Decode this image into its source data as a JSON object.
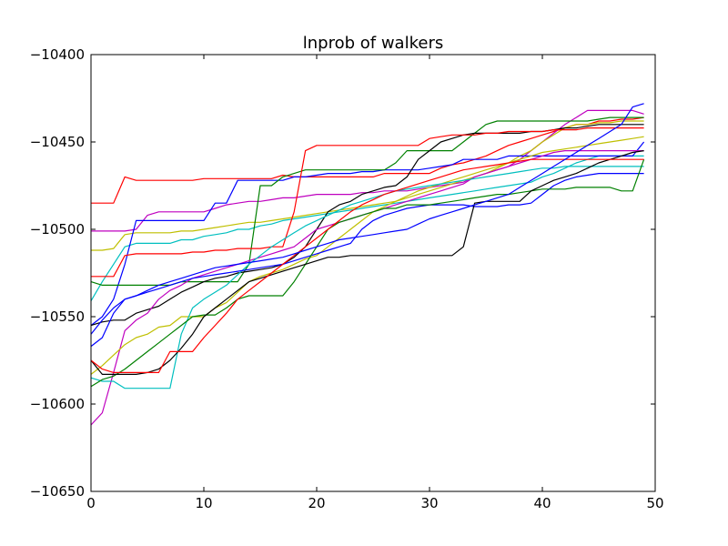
{
  "chart_data": {
    "type": "line",
    "title": "lnprob of walkers",
    "xlabel": "",
    "ylabel": "",
    "xlim": [
      0,
      50
    ],
    "ylim": [
      -10650,
      -10400
    ],
    "xticks": [
      0,
      10,
      20,
      30,
      40,
      50
    ],
    "yticks": [
      -10650,
      -10600,
      -10550,
      -10500,
      -10450,
      -10400
    ],
    "xtick_labels": [
      "0",
      "10",
      "20",
      "30",
      "40",
      "50"
    ],
    "ytick_labels": [
      "−10650",
      "−10600",
      "−10550",
      "−10500",
      "−10450",
      "−10400"
    ],
    "grid": false,
    "x": [
      0,
      1,
      2,
      3,
      4,
      5,
      6,
      7,
      8,
      9,
      10,
      11,
      12,
      13,
      14,
      15,
      16,
      17,
      18,
      19,
      20,
      21,
      22,
      23,
      24,
      25,
      26,
      27,
      28,
      29,
      30,
      31,
      32,
      33,
      34,
      35,
      36,
      37,
      38,
      39,
      40,
      41,
      42,
      43,
      44,
      45,
      46,
      47,
      48,
      49
    ],
    "series": [
      {
        "color": "#ff0000",
        "values": [
          -10485,
          -10485,
          -10485,
          -10470,
          -10472,
          -10472,
          -10472,
          -10472,
          -10472,
          -10472,
          -10471,
          -10471,
          -10471,
          -10471,
          -10471,
          -10471,
          -10471,
          -10469,
          -10470,
          -10470,
          -10470,
          -10470,
          -10470,
          -10470,
          -10470,
          -10470,
          -10468,
          -10468,
          -10468,
          -10468,
          -10468,
          -10465,
          -10463,
          -10462,
          -10460,
          -10458,
          -10455,
          -10452,
          -10450,
          -10448,
          -10446,
          -10444,
          -10442,
          -10440,
          -10440,
          -10438,
          -10438,
          -10437,
          -10437,
          -10436
        ]
      },
      {
        "color": "#bf00bf",
        "values": [
          -10501,
          -10501,
          -10501,
          -10501,
          -10500,
          -10492,
          -10490,
          -10490,
          -10490,
          -10490,
          -10490,
          -10488,
          -10486,
          -10485,
          -10484,
          -10484,
          -10483,
          -10482,
          -10482,
          -10481,
          -10480,
          -10480,
          -10480,
          -10480,
          -10479,
          -10479,
          -10478,
          -10478,
          -10478,
          -10477,
          -10476,
          -10475,
          -10474,
          -10473,
          -10470,
          -10468,
          -10466,
          -10464,
          -10460,
          -10455,
          -10450,
          -10445,
          -10440,
          -10436,
          -10432,
          -10432,
          -10432,
          -10432,
          -10432,
          -10434
        ]
      },
      {
        "color": "#bfbf00",
        "values": [
          -10512,
          -10512,
          -10511,
          -10503,
          -10502,
          -10502,
          -10502,
          -10502,
          -10501,
          -10501,
          -10500,
          -10499,
          -10498,
          -10497,
          -10496,
          -10496,
          -10495,
          -10494,
          -10493,
          -10492,
          -10491,
          -10490,
          -10489,
          -10488,
          -10487,
          -10486,
          -10485,
          -10484,
          -10482,
          -10480,
          -10478,
          -10476,
          -10474,
          -10472,
          -10470,
          -10468,
          -10465,
          -10462,
          -10458,
          -10455,
          -10450,
          -10446,
          -10442,
          -10440,
          -10440,
          -10439,
          -10439,
          -10438,
          -10438,
          -10438
        ]
      },
      {
        "color": "#00bfbf",
        "values": [
          -10541,
          -10530,
          -10520,
          -10510,
          -10508,
          -10508,
          -10508,
          -10508,
          -10506,
          -10506,
          -10504,
          -10503,
          -10502,
          -10500,
          -10500,
          -10498,
          -10497,
          -10495,
          -10494,
          -10493,
          -10492,
          -10491,
          -10490,
          -10489,
          -10488,
          -10487,
          -10486,
          -10485,
          -10484,
          -10483,
          -10482,
          -10481,
          -10480,
          -10479,
          -10478,
          -10477,
          -10476,
          -10475,
          -10474,
          -10473,
          -10470,
          -10468,
          -10465,
          -10462,
          -10460,
          -10458,
          -10458,
          -10458,
          -10458,
          -10458
        ]
      },
      {
        "color": "#0000ff",
        "values": [
          -10555,
          -10550,
          -10540,
          -10520,
          -10495,
          -10495,
          -10495,
          -10495,
          -10495,
          -10495,
          -10495,
          -10485,
          -10485,
          -10472,
          -10472,
          -10472,
          -10472,
          -10472,
          -10470,
          -10470,
          -10469,
          -10468,
          -10468,
          -10468,
          -10467,
          -10467,
          -10466,
          -10466,
          -10466,
          -10466,
          -10465,
          -10464,
          -10463,
          -10460,
          -10460,
          -10460,
          -10460,
          -10458,
          -10458,
          -10458,
          -10458,
          -10458,
          -10458,
          -10458,
          -10458,
          -10458,
          -10458,
          -10458,
          -10458,
          -10450
        ]
      },
      {
        "color": "#008000",
        "values": [
          -10530,
          -10532,
          -10532,
          -10532,
          -10532,
          -10532,
          -10532,
          -10532,
          -10530,
          -10530,
          -10530,
          -10530,
          -10530,
          -10530,
          -10520,
          -10475,
          -10475,
          -10470,
          -10468,
          -10466,
          -10466,
          -10466,
          -10466,
          -10466,
          -10466,
          -10466,
          -10466,
          -10462,
          -10455,
          -10455,
          -10455,
          -10455,
          -10455,
          -10450,
          -10445,
          -10440,
          -10438,
          -10438,
          -10438,
          -10438,
          -10438,
          -10438,
          -10438,
          -10438,
          -10438,
          -10437,
          -10436,
          -10436,
          -10436,
          -10436
        ]
      },
      {
        "color": "#000000",
        "values": [
          -10555,
          -10553,
          -10552,
          -10552,
          -10548,
          -10546,
          -10544,
          -10540,
          -10536,
          -10533,
          -10530,
          -10528,
          -10527,
          -10525,
          -10524,
          -10523,
          -10522,
          -10520,
          -10516,
          -10510,
          -10500,
          -10490,
          -10486,
          -10484,
          -10480,
          -10478,
          -10476,
          -10475,
          -10470,
          -10460,
          -10455,
          -10450,
          -10448,
          -10446,
          -10445,
          -10445,
          -10445,
          -10445,
          -10445,
          -10444,
          -10444,
          -10443,
          -10442,
          -10442,
          -10441,
          -10440,
          -10440,
          -10440,
          -10440,
          -10440
        ]
      },
      {
        "color": "#ff0000",
        "values": [
          -10527,
          -10527,
          -10527,
          -10515,
          -10514,
          -10514,
          -10514,
          -10514,
          -10514,
          -10513,
          -10513,
          -10512,
          -10512,
          -10511,
          -10511,
          -10511,
          -10510,
          -10510,
          -10490,
          -10455,
          -10452,
          -10452,
          -10452,
          -10452,
          -10452,
          -10452,
          -10452,
          -10452,
          -10452,
          -10452,
          -10448,
          -10447,
          -10446,
          -10446,
          -10446,
          -10445,
          -10445,
          -10444,
          -10444,
          -10444,
          -10444,
          -10443,
          -10443,
          -10443,
          -10442,
          -10442,
          -10442,
          -10442,
          -10442,
          -10442
        ]
      },
      {
        "color": "#bf00bf",
        "values": [
          -10612,
          -10605,
          -10582,
          -10558,
          -10552,
          -10548,
          -10540,
          -10535,
          -10532,
          -10528,
          -10526,
          -10524,
          -10522,
          -10520,
          -10518,
          -10516,
          -10514,
          -10512,
          -10510,
          -10505,
          -10500,
          -10498,
          -10496,
          -10494,
          -10492,
          -10490,
          -10488,
          -10486,
          -10484,
          -10482,
          -10480,
          -10478,
          -10476,
          -10474,
          -10470,
          -10468,
          -10466,
          -10464,
          -10462,
          -10460,
          -10458,
          -10456,
          -10455,
          -10455,
          -10455,
          -10455,
          -10455,
          -10455,
          -10455,
          -10455
        ]
      },
      {
        "color": "#bfbf00",
        "values": [
          -10583,
          -10578,
          -10572,
          -10566,
          -10562,
          -10560,
          -10556,
          -10555,
          -10550,
          -10550,
          -10550,
          -10545,
          -10542,
          -10536,
          -10530,
          -10527,
          -10525,
          -10523,
          -10520,
          -10517,
          -10515,
          -10510,
          -10505,
          -10500,
          -10495,
          -10490,
          -10487,
          -10484,
          -10481,
          -10478,
          -10476,
          -10474,
          -10472,
          -10470,
          -10468,
          -10466,
          -10464,
          -10462,
          -10460,
          -10458,
          -10456,
          -10455,
          -10454,
          -10453,
          -10452,
          -10451,
          -10450,
          -10449,
          -10448,
          -10447
        ]
      },
      {
        "color": "#00bfbf",
        "values": [
          -10585,
          -10587,
          -10587,
          -10591,
          -10591,
          -10591,
          -10591,
          -10591,
          -10560,
          -10545,
          -10540,
          -10536,
          -10532,
          -10526,
          -10520,
          -10515,
          -10510,
          -10506,
          -10502,
          -10498,
          -10495,
          -10492,
          -10489,
          -10486,
          -10484,
          -10482,
          -10480,
          -10478,
          -10477,
          -10476,
          -10475,
          -10474,
          -10473,
          -10472,
          -10471,
          -10470,
          -10469,
          -10468,
          -10467,
          -10466,
          -10465,
          -10465,
          -10464,
          -10464,
          -10464,
          -10464,
          -10464,
          -10464,
          -10464,
          -10464
        ]
      },
      {
        "color": "#0000ff",
        "values": [
          -10567,
          -10562,
          -10548,
          -10540,
          -10538,
          -10536,
          -10534,
          -10532,
          -10530,
          -10528,
          -10527,
          -10526,
          -10525,
          -10524,
          -10523,
          -10522,
          -10521,
          -10520,
          -10518,
          -10516,
          -10514,
          -10512,
          -10510,
          -10508,
          -10500,
          -10495,
          -10492,
          -10490,
          -10488,
          -10487,
          -10486,
          -10486,
          -10486,
          -10486,
          -10487,
          -10487,
          -10487,
          -10486,
          -10486,
          -10485,
          -10480,
          -10475,
          -10472,
          -10470,
          -10469,
          -10468,
          -10468,
          -10468,
          -10468,
          -10468
        ]
      },
      {
        "color": "#008000",
        "values": [
          -10590,
          -10586,
          -10584,
          -10580,
          -10575,
          -10570,
          -10565,
          -10560,
          -10555,
          -10550,
          -10549,
          -10549,
          -10545,
          -10540,
          -10538,
          -10538,
          -10538,
          -10538,
          -10530,
          -10520,
          -10510,
          -10500,
          -10496,
          -10494,
          -10492,
          -10490,
          -10488,
          -10488,
          -10486,
          -10486,
          -10486,
          -10485,
          -10484,
          -10483,
          -10482,
          -10481,
          -10480,
          -10480,
          -10479,
          -10478,
          -10477,
          -10477,
          -10477,
          -10476,
          -10476,
          -10476,
          -10476,
          -10478,
          -10478,
          -10460
        ]
      },
      {
        "color": "#000000",
        "values": [
          -10575,
          -10583,
          -10583,
          -10583,
          -10583,
          -10582,
          -10580,
          -10575,
          -10568,
          -10560,
          -10550,
          -10545,
          -10540,
          -10535,
          -10530,
          -10528,
          -10526,
          -10524,
          -10522,
          -10520,
          -10518,
          -10516,
          -10516,
          -10515,
          -10515,
          -10515,
          -10515,
          -10515,
          -10515,
          -10515,
          -10515,
          -10515,
          -10515,
          -10510,
          -10485,
          -10484,
          -10484,
          -10484,
          -10484,
          -10478,
          -10475,
          -10472,
          -10470,
          -10468,
          -10465,
          -10462,
          -10460,
          -10458,
          -10456,
          -10455
        ]
      },
      {
        "color": "#ff0000",
        "values": [
          -10575,
          -10580,
          -10582,
          -10582,
          -10582,
          -10582,
          -10582,
          -10570,
          -10570,
          -10570,
          -10562,
          -10555,
          -10548,
          -10540,
          -10535,
          -10530,
          -10525,
          -10520,
          -10515,
          -10510,
          -10505,
          -10500,
          -10495,
          -10490,
          -10486,
          -10483,
          -10480,
          -10478,
          -10476,
          -10474,
          -10472,
          -10470,
          -10468,
          -10466,
          -10465,
          -10464,
          -10463,
          -10462,
          -10461,
          -10460,
          -10460,
          -10460,
          -10460,
          -10460,
          -10460,
          -10460,
          -10460,
          -10460,
          -10460,
          -10460
        ]
      },
      {
        "color": "#0000ff",
        "values": [
          -10560,
          -10552,
          -10545,
          -10540,
          -10538,
          -10535,
          -10532,
          -10530,
          -10528,
          -10526,
          -10524,
          -10522,
          -10521,
          -10520,
          -10519,
          -10518,
          -10517,
          -10516,
          -10514,
          -10512,
          -10510,
          -10508,
          -10506,
          -10505,
          -10504,
          -10503,
          -10502,
          -10501,
          -10500,
          -10497,
          -10494,
          -10492,
          -10490,
          -10488,
          -10486,
          -10484,
          -10482,
          -10480,
          -10476,
          -10472,
          -10468,
          -10464,
          -10460,
          -10456,
          -10452,
          -10448,
          -10444,
          -10440,
          -10430,
          -10428
        ]
      }
    ]
  }
}
